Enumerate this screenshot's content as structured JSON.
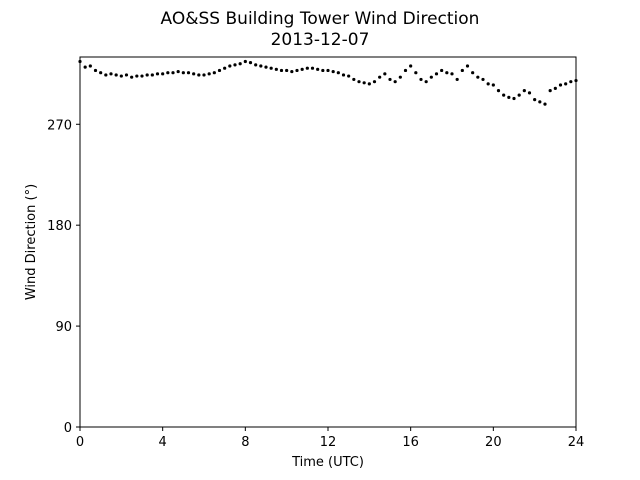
{
  "chart_data": {
    "type": "scatter",
    "title": "AO&SS Building Tower Wind Direction",
    "subtitle": "2013-12-07",
    "xlabel": "Time (UTC)",
    "ylabel": "Wind Direction (°)",
    "xlim": [
      0,
      24
    ],
    "ylim": [
      0,
      330
    ],
    "xticks": [
      0,
      4,
      8,
      12,
      16,
      20,
      24
    ],
    "yticks": [
      0,
      90,
      180,
      270
    ],
    "grid": false,
    "legend": "none",
    "marker_color": "#000000",
    "series": [
      {
        "x": [
          0.0,
          0.25,
          0.5,
          0.75,
          1.0,
          1.25,
          1.5,
          1.75,
          2.0,
          2.25,
          2.5,
          2.75,
          3.0,
          3.25,
          3.5,
          3.75,
          4.0,
          4.25,
          4.5,
          4.75,
          5.0,
          5.25,
          5.5,
          5.75,
          6.0,
          6.25,
          6.5,
          6.75,
          7.0,
          7.25,
          7.5,
          7.75,
          8.0,
          8.25,
          8.5,
          8.75,
          9.0,
          9.25,
          9.5,
          9.75,
          10.0,
          10.25,
          10.5,
          10.75,
          11.0,
          11.25,
          11.5,
          11.75,
          12.0,
          12.25,
          12.5,
          12.75,
          13.0,
          13.25,
          13.5,
          13.75,
          14.0,
          14.25,
          14.5,
          14.75,
          15.0,
          15.25,
          15.5,
          15.75,
          16.0,
          16.25,
          16.5,
          16.75,
          17.0,
          17.25,
          17.5,
          17.75,
          18.0,
          18.25,
          18.5,
          18.75,
          19.0,
          19.25,
          19.5,
          19.75,
          20.0,
          20.25,
          20.5,
          20.75,
          21.0,
          21.25,
          21.5,
          21.75,
          22.0,
          22.25,
          22.5,
          22.75,
          23.0,
          23.25,
          23.5,
          23.75,
          24.0
        ],
        "y": [
          326,
          321,
          322,
          318,
          316,
          314,
          315,
          314,
          313,
          314,
          312,
          313,
          313,
          314,
          314,
          315,
          315,
          316,
          316,
          317,
          316,
          316,
          315,
          314,
          314,
          315,
          316,
          318,
          320,
          322,
          323,
          324,
          326,
          325,
          323,
          322,
          321,
          320,
          319,
          318,
          318,
          317,
          318,
          319,
          320,
          320,
          319,
          318,
          318,
          317,
          316,
          314,
          313,
          310,
          308,
          307,
          306,
          308,
          312,
          315,
          310,
          308,
          312,
          318,
          322,
          316,
          310,
          308,
          312,
          315,
          318,
          316,
          315,
          310,
          318,
          322,
          316,
          312,
          310,
          306,
          305,
          300,
          296,
          294,
          293,
          296,
          300,
          298,
          292,
          290,
          288,
          300,
          302,
          305,
          306,
          308,
          309
        ]
      }
    ]
  }
}
